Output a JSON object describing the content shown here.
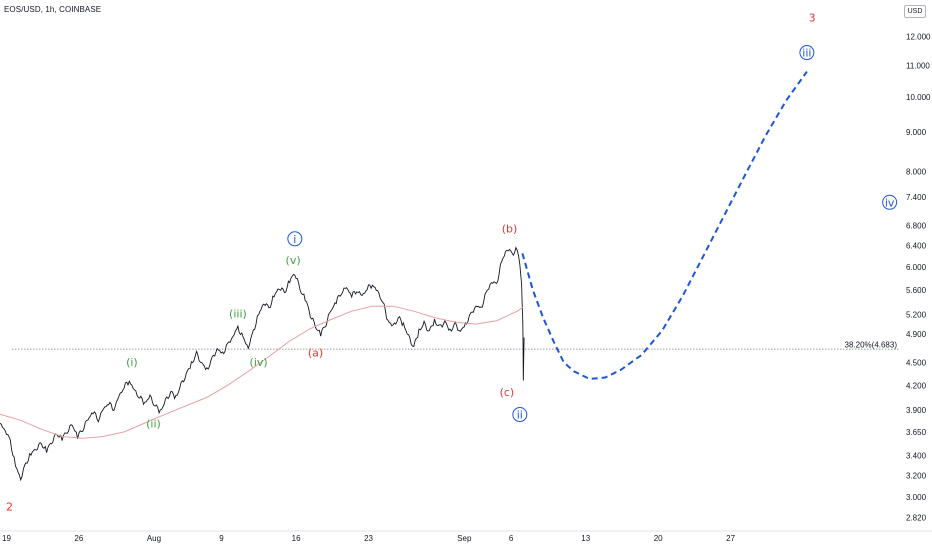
{
  "chart_title": "EOS/USD, 1h, COINBASE",
  "currency_button": "USD",
  "colors": {
    "price": "#131722",
    "ma": "#e8a0a3",
    "projection": "#1e56d6",
    "red_label": "#e53935",
    "green_label": "#43a047",
    "blue_label": "#1e56d6",
    "level_line": "#787b86"
  },
  "chart_data": {
    "type": "line",
    "y_scale": "log",
    "ylim": [
      2.8,
      13.0
    ],
    "xlim": [
      "2021-07-19",
      "2021-10-14"
    ],
    "price_ticks": [
      "12.000",
      "11.000",
      "10.000",
      "9.000",
      "8.000",
      "7.400",
      "6.800",
      "6.400",
      "6.000",
      "5.600",
      "5.200",
      "4.900",
      "4.500",
      "4.200",
      "3.900",
      "3.650",
      "3.400",
      "3.200",
      "3.000",
      "2.820"
    ],
    "x_ticks": [
      {
        "label": "19",
        "x": "2021-07-19"
      },
      {
        "label": "26",
        "x": "2021-07-26"
      },
      {
        "label": "Aug",
        "x": "2021-08-02"
      },
      {
        "label": "9",
        "x": "2021-08-09"
      },
      {
        "label": "16",
        "x": "2021-08-16"
      },
      {
        "label": "23",
        "x": "2021-08-23"
      },
      {
        "label": "Sep",
        "x": "2021-09-01"
      },
      {
        "label": "6",
        "x": "2021-09-06"
      },
      {
        "label": "13",
        "x": "2021-09-13"
      },
      {
        "label": "20",
        "x": "2021-09-20"
      },
      {
        "label": "27",
        "x": "2021-09-27"
      }
    ],
    "level": {
      "label": "38.20%(4.683)",
      "value": 4.683
    },
    "series": [
      {
        "kind": "price",
        "points": [
          [
            "2021-07-19T00:00",
            3.75
          ],
          [
            "2021-07-19T12:00",
            3.68
          ],
          [
            "2021-07-20T00:00",
            3.55
          ],
          [
            "2021-07-20T12:00",
            3.3
          ],
          [
            "2021-07-21T00:00",
            3.18
          ],
          [
            "2021-07-21T12:00",
            3.32
          ],
          [
            "2021-07-22T00:00",
            3.42
          ],
          [
            "2021-07-22T12:00",
            3.48
          ],
          [
            "2021-07-23T00:00",
            3.52
          ],
          [
            "2021-07-23T12:00",
            3.45
          ],
          [
            "2021-07-24T00:00",
            3.55
          ],
          [
            "2021-07-24T12:00",
            3.62
          ],
          [
            "2021-07-25T00:00",
            3.58
          ],
          [
            "2021-07-25T12:00",
            3.66
          ],
          [
            "2021-07-26T00:00",
            3.72
          ],
          [
            "2021-07-26T12:00",
            3.6
          ],
          [
            "2021-07-27T00:00",
            3.68
          ],
          [
            "2021-07-27T12:00",
            3.78
          ],
          [
            "2021-07-28T00:00",
            3.88
          ],
          [
            "2021-07-28T12:00",
            3.78
          ],
          [
            "2021-07-29T00:00",
            3.9
          ],
          [
            "2021-07-29T12:00",
            3.98
          ],
          [
            "2021-07-30T00:00",
            3.9
          ],
          [
            "2021-07-30T12:00",
            4.05
          ],
          [
            "2021-07-31T00:00",
            4.18
          ],
          [
            "2021-07-31T12:00",
            4.25
          ],
          [
            "2021-08-01T00:00",
            4.12
          ],
          [
            "2021-08-01T12:00",
            4.05
          ],
          [
            "2021-08-02T00:00",
            3.98
          ],
          [
            "2021-08-02T12:00",
            4.05
          ],
          [
            "2021-08-03T00:00",
            3.95
          ],
          [
            "2021-08-03T12:00",
            3.88
          ],
          [
            "2021-08-04T00:00",
            4.0
          ],
          [
            "2021-08-04T12:00",
            4.12
          ],
          [
            "2021-08-05T00:00",
            4.05
          ],
          [
            "2021-08-05T12:00",
            4.2
          ],
          [
            "2021-08-06T00:00",
            4.35
          ],
          [
            "2021-08-06T12:00",
            4.48
          ],
          [
            "2021-08-07T00:00",
            4.62
          ],
          [
            "2021-08-07T12:00",
            4.5
          ],
          [
            "2021-08-08T00:00",
            4.4
          ],
          [
            "2021-08-08T12:00",
            4.55
          ],
          [
            "2021-08-09T00:00",
            4.7
          ],
          [
            "2021-08-09T12:00",
            4.62
          ],
          [
            "2021-08-10T00:00",
            4.75
          ],
          [
            "2021-08-10T12:00",
            4.88
          ],
          [
            "2021-08-11T00:00",
            5.0
          ],
          [
            "2021-08-11T12:00",
            4.85
          ],
          [
            "2021-08-12T00:00",
            4.72
          ],
          [
            "2021-08-12T12:00",
            4.95
          ],
          [
            "2021-08-13T00:00",
            5.2
          ],
          [
            "2021-08-13T12:00",
            5.4
          ],
          [
            "2021-08-14T00:00",
            5.3
          ],
          [
            "2021-08-14T12:00",
            5.5
          ],
          [
            "2021-08-15T00:00",
            5.65
          ],
          [
            "2021-08-15T12:00",
            5.55
          ],
          [
            "2021-08-16T00:00",
            5.75
          ],
          [
            "2021-08-16T12:00",
            5.9
          ],
          [
            "2021-08-17T00:00",
            5.6
          ],
          [
            "2021-08-17T12:00",
            5.45
          ],
          [
            "2021-08-18T00:00",
            5.2
          ],
          [
            "2021-08-18T12:00",
            5.0
          ],
          [
            "2021-08-19T00:00",
            4.9
          ],
          [
            "2021-08-19T12:00",
            5.05
          ],
          [
            "2021-08-20T00:00",
            5.25
          ],
          [
            "2021-08-20T12:00",
            5.4
          ],
          [
            "2021-08-21T00:00",
            5.55
          ],
          [
            "2021-08-21T12:00",
            5.62
          ],
          [
            "2021-08-22T00:00",
            5.5
          ],
          [
            "2021-08-22T12:00",
            5.58
          ],
          [
            "2021-08-23T00:00",
            5.48
          ],
          [
            "2021-08-23T12:00",
            5.62
          ],
          [
            "2021-08-24T00:00",
            5.68
          ],
          [
            "2021-08-24T12:00",
            5.55
          ],
          [
            "2021-08-25T00:00",
            5.4
          ],
          [
            "2021-08-25T12:00",
            5.1
          ],
          [
            "2021-08-26T00:00",
            5.0
          ],
          [
            "2021-08-26T12:00",
            5.15
          ],
          [
            "2021-08-27T00:00",
            5.05
          ],
          [
            "2021-08-27T12:00",
            4.85
          ],
          [
            "2021-08-28T00:00",
            4.72
          ],
          [
            "2021-08-28T12:00",
            4.95
          ],
          [
            "2021-08-29T00:00",
            5.05
          ],
          [
            "2021-08-29T12:00",
            4.95
          ],
          [
            "2021-08-30T00:00",
            5.1
          ],
          [
            "2021-08-30T12:00",
            5.0
          ],
          [
            "2021-08-31T00:00",
            5.1
          ],
          [
            "2021-08-31T12:00",
            4.95
          ],
          [
            "2021-09-01T00:00",
            5.05
          ],
          [
            "2021-09-01T12:00",
            4.95
          ],
          [
            "2021-09-02T00:00",
            5.05
          ],
          [
            "2021-09-02T12:00",
            5.2
          ],
          [
            "2021-09-03T00:00",
            5.35
          ],
          [
            "2021-09-03T12:00",
            5.3
          ],
          [
            "2021-09-04T00:00",
            5.55
          ],
          [
            "2021-09-04T12:00",
            5.75
          ],
          [
            "2021-09-05T00:00",
            5.7
          ],
          [
            "2021-09-05T12:00",
            6.1
          ],
          [
            "2021-09-06T00:00",
            6.35
          ],
          [
            "2021-09-06T12:00",
            6.25
          ],
          [
            "2021-09-07T00:00",
            6.32
          ],
          [
            "2021-09-07T06:00",
            6.1
          ],
          [
            "2021-09-07T10:00",
            5.7
          ],
          [
            "2021-09-07T13:00",
            5.1
          ],
          [
            "2021-09-07T14:00",
            4.3
          ],
          [
            "2021-09-07T16:00",
            4.85
          ]
        ]
      },
      {
        "kind": "ma",
        "points": [
          [
            "2021-07-19T00:00",
            3.85
          ],
          [
            "2021-07-21T00:00",
            3.78
          ],
          [
            "2021-07-23T00:00",
            3.68
          ],
          [
            "2021-07-25T00:00",
            3.6
          ],
          [
            "2021-07-27T00:00",
            3.58
          ],
          [
            "2021-07-29T00:00",
            3.6
          ],
          [
            "2021-07-31T00:00",
            3.65
          ],
          [
            "2021-08-02T00:00",
            3.75
          ],
          [
            "2021-08-04T00:00",
            3.85
          ],
          [
            "2021-08-06T00:00",
            3.95
          ],
          [
            "2021-08-08T00:00",
            4.05
          ],
          [
            "2021-08-10T00:00",
            4.2
          ],
          [
            "2021-08-12T00:00",
            4.38
          ],
          [
            "2021-08-14T00:00",
            4.58
          ],
          [
            "2021-08-16T00:00",
            4.8
          ],
          [
            "2021-08-18T00:00",
            4.98
          ],
          [
            "2021-08-20T00:00",
            5.12
          ],
          [
            "2021-08-22T00:00",
            5.25
          ],
          [
            "2021-08-24T00:00",
            5.33
          ],
          [
            "2021-08-26T00:00",
            5.33
          ],
          [
            "2021-08-28T00:00",
            5.25
          ],
          [
            "2021-08-30T00:00",
            5.15
          ],
          [
            "2021-09-01T00:00",
            5.08
          ],
          [
            "2021-09-03T00:00",
            5.05
          ],
          [
            "2021-09-05T00:00",
            5.1
          ],
          [
            "2021-09-07T00:00",
            5.25
          ],
          [
            "2021-09-07T14:00",
            5.32
          ]
        ]
      },
      {
        "kind": "projection",
        "points": [
          [
            "2021-09-07T12:00",
            6.25
          ],
          [
            "2021-09-08T12:00",
            5.6
          ],
          [
            "2021-09-09T12:00",
            5.15
          ],
          [
            "2021-09-10T12:00",
            4.8
          ],
          [
            "2021-09-11T12:00",
            4.5
          ],
          [
            "2021-09-12T12:00",
            4.38
          ],
          [
            "2021-09-14T00:00",
            4.28
          ],
          [
            "2021-09-15T12:00",
            4.3
          ],
          [
            "2021-09-17T00:00",
            4.4
          ],
          [
            "2021-09-19T00:00",
            4.6
          ],
          [
            "2021-09-21T00:00",
            4.95
          ],
          [
            "2021-09-23T00:00",
            5.5
          ],
          [
            "2021-09-25T00:00",
            6.2
          ],
          [
            "2021-09-27T00:00",
            7.0
          ],
          [
            "2021-09-29T00:00",
            7.9
          ],
          [
            "2021-10-01T00:00",
            8.9
          ],
          [
            "2021-10-03T00:00",
            9.9
          ],
          [
            "2021-10-05T00:00",
            10.8
          ]
        ]
      }
    ],
    "annotations": [
      {
        "text": "2",
        "color": "red",
        "x": "2021-07-19T22:00",
        "y": 2.88,
        "circled": false
      },
      {
        "text": "(i)",
        "color": "green",
        "x": "2021-07-31T18:00",
        "y": 4.45,
        "circled": false
      },
      {
        "text": "(ii)",
        "color": "green",
        "x": "2021-08-02T20:00",
        "y": 3.7,
        "circled": false
      },
      {
        "text": "(iii)",
        "color": "green",
        "x": "2021-08-11T00:00",
        "y": 5.15,
        "circled": false
      },
      {
        "text": "(iv)",
        "color": "green",
        "x": "2021-08-13T00:00",
        "y": 4.45,
        "circled": false
      },
      {
        "text": "(v)",
        "color": "green",
        "x": "2021-08-16T08:00",
        "y": 6.05,
        "circled": false
      },
      {
        "text": "i",
        "color": "blue",
        "x": "2021-08-16T12:00",
        "y": 6.45,
        "circled": true
      },
      {
        "text": "(a)",
        "color": "red",
        "x": "2021-08-18T12:00",
        "y": 4.58,
        "circled": false
      },
      {
        "text": "(b)",
        "color": "red",
        "x": "2021-09-06T06:00",
        "y": 6.65,
        "circled": false
      },
      {
        "text": "(c)",
        "color": "red",
        "x": "2021-09-06T00:00",
        "y": 4.07,
        "circled": false
      },
      {
        "text": "ii",
        "color": "blue",
        "x": "2021-09-07T06:00",
        "y": 3.8,
        "circled": true
      },
      {
        "text": "iii",
        "color": "blue",
        "x": "2021-10-05T00:00",
        "y": 11.3,
        "circled": true
      },
      {
        "text": "3",
        "color": "red",
        "x": "2021-10-05T12:00",
        "y": 12.55,
        "circled": false
      },
      {
        "text": "iv",
        "color": "blue",
        "x": "2021-10-13T00:00",
        "y": 7.2,
        "circled": true
      }
    ]
  }
}
